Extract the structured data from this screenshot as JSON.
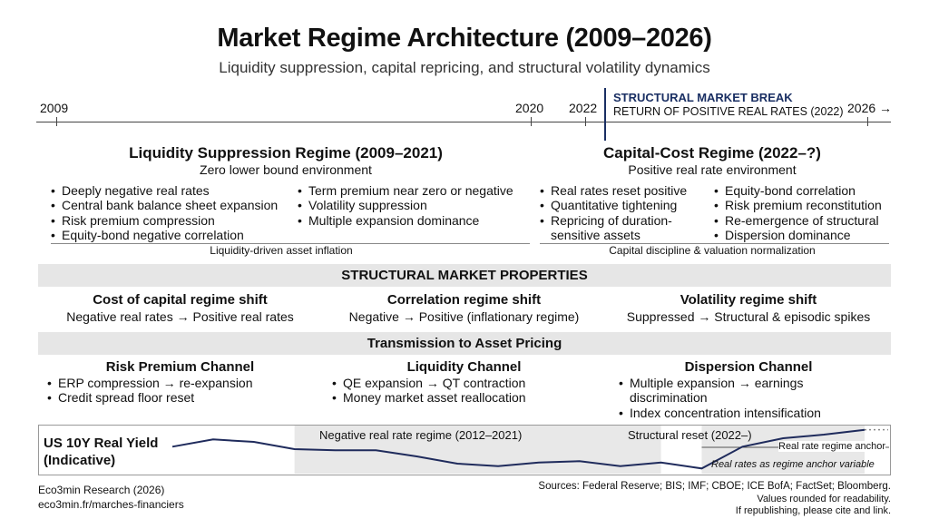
{
  "header": {
    "title": "Market Regime Architecture (2009–2026)",
    "subtitle": "Liquidity suppression, capital repricing, and structural volatility dynamics"
  },
  "timeline": {
    "start": "2009",
    "mark_2020": "2020",
    "mark_2022": "2022",
    "end": "2026 →",
    "break_title": "STRUCTURAL MARKET BREAK",
    "break_subtitle": "RETURN OF POSITIVE REAL RATES (2022)"
  },
  "regimes": [
    {
      "title": "Liquidity Suppression Regime (2009–2021)",
      "subtitle": "Zero lower bound environment",
      "bullets_left": [
        "Deeply negative real rates",
        "Central bank balance sheet expansion",
        "Risk premium compression",
        "Equity-bond negative correlation"
      ],
      "bullets_right": [
        "Term premium near zero or negative",
        "Volatility suppression",
        "Multiple expansion dominance"
      ],
      "caption": "Liquidity-driven asset inflation"
    },
    {
      "title": "Capital-Cost Regime (2022–?)",
      "subtitle": "Positive real rate environment",
      "bullets_left": [
        "Real rates reset positive",
        "Quantitative tightening",
        "Repricing of duration-sensitive assets"
      ],
      "bullets_right": [
        "Equity-bond correlation",
        "Risk premium reconstitution",
        "Re-emergence of structural",
        "Dispersion dominance"
      ],
      "caption": "Capital discipline & valuation normalization"
    }
  ],
  "properties": {
    "band_title": "STRUCTURAL MARKET PROPERTIES",
    "items": [
      {
        "title": "Cost of capital regime shift",
        "desc": "Negative real rates → Positive real rates"
      },
      {
        "title": "Correlation regime shift",
        "desc": "Negative → Positive (inflationary regime)"
      },
      {
        "title": "Volatility regime shift",
        "desc": "Suppressed → Structural & episodic spikes"
      }
    ]
  },
  "transmission": {
    "band_title": "Transmission to Asset Pricing",
    "channels": [
      {
        "title": "Risk Premium Channel",
        "bullets": [
          "ERP compression → re-expansion",
          "Credit spread floor reset"
        ]
      },
      {
        "title": "Liquidity Channel",
        "bullets": [
          "QE expansion → QT contraction",
          "Money market asset reallocation"
        ]
      },
      {
        "title": "Dispersion Channel",
        "bullets": [
          "Multiple expansion → earnings discrimination",
          "Index concentration intensification"
        ]
      }
    ]
  },
  "chart_data": {
    "type": "line",
    "title": "US 10Y Real Yield (Indicative)",
    "annotations": [
      "Negative real rate regime (2012–2021)",
      "Structural reset (2022–)",
      "Real rate regime anchor",
      "Real rates as regime anchor variable"
    ],
    "x": [
      2009,
      2010,
      2011,
      2012,
      2013,
      2014,
      2015,
      2016,
      2017,
      2018,
      2019,
      2020,
      2021,
      2022,
      2023,
      2024,
      2025,
      2026
    ],
    "y": [
      0.5,
      1.1,
      0.9,
      0.3,
      0.2,
      0.2,
      -0.3,
      -0.9,
      -1.1,
      -0.8,
      -0.7,
      -1.1,
      -0.8,
      -1.3,
      0.5,
      1.2,
      1.5,
      1.9
    ],
    "reference_line": 0.0,
    "shaded_ranges": [
      [
        2012,
        2021
      ],
      [
        2022,
        2026
      ]
    ]
  },
  "footer": {
    "publisher": "Eco3min Research (2026)",
    "url": "eco3min.fr/marches-financiers",
    "sources": "Sources: Federal Reserve; BIS; IMF; CBOE; ICE BofA; FactSet; Bloomberg.",
    "rounding_note": "Values rounded for readability.",
    "republish_note": "If republishing, please cite and link."
  }
}
